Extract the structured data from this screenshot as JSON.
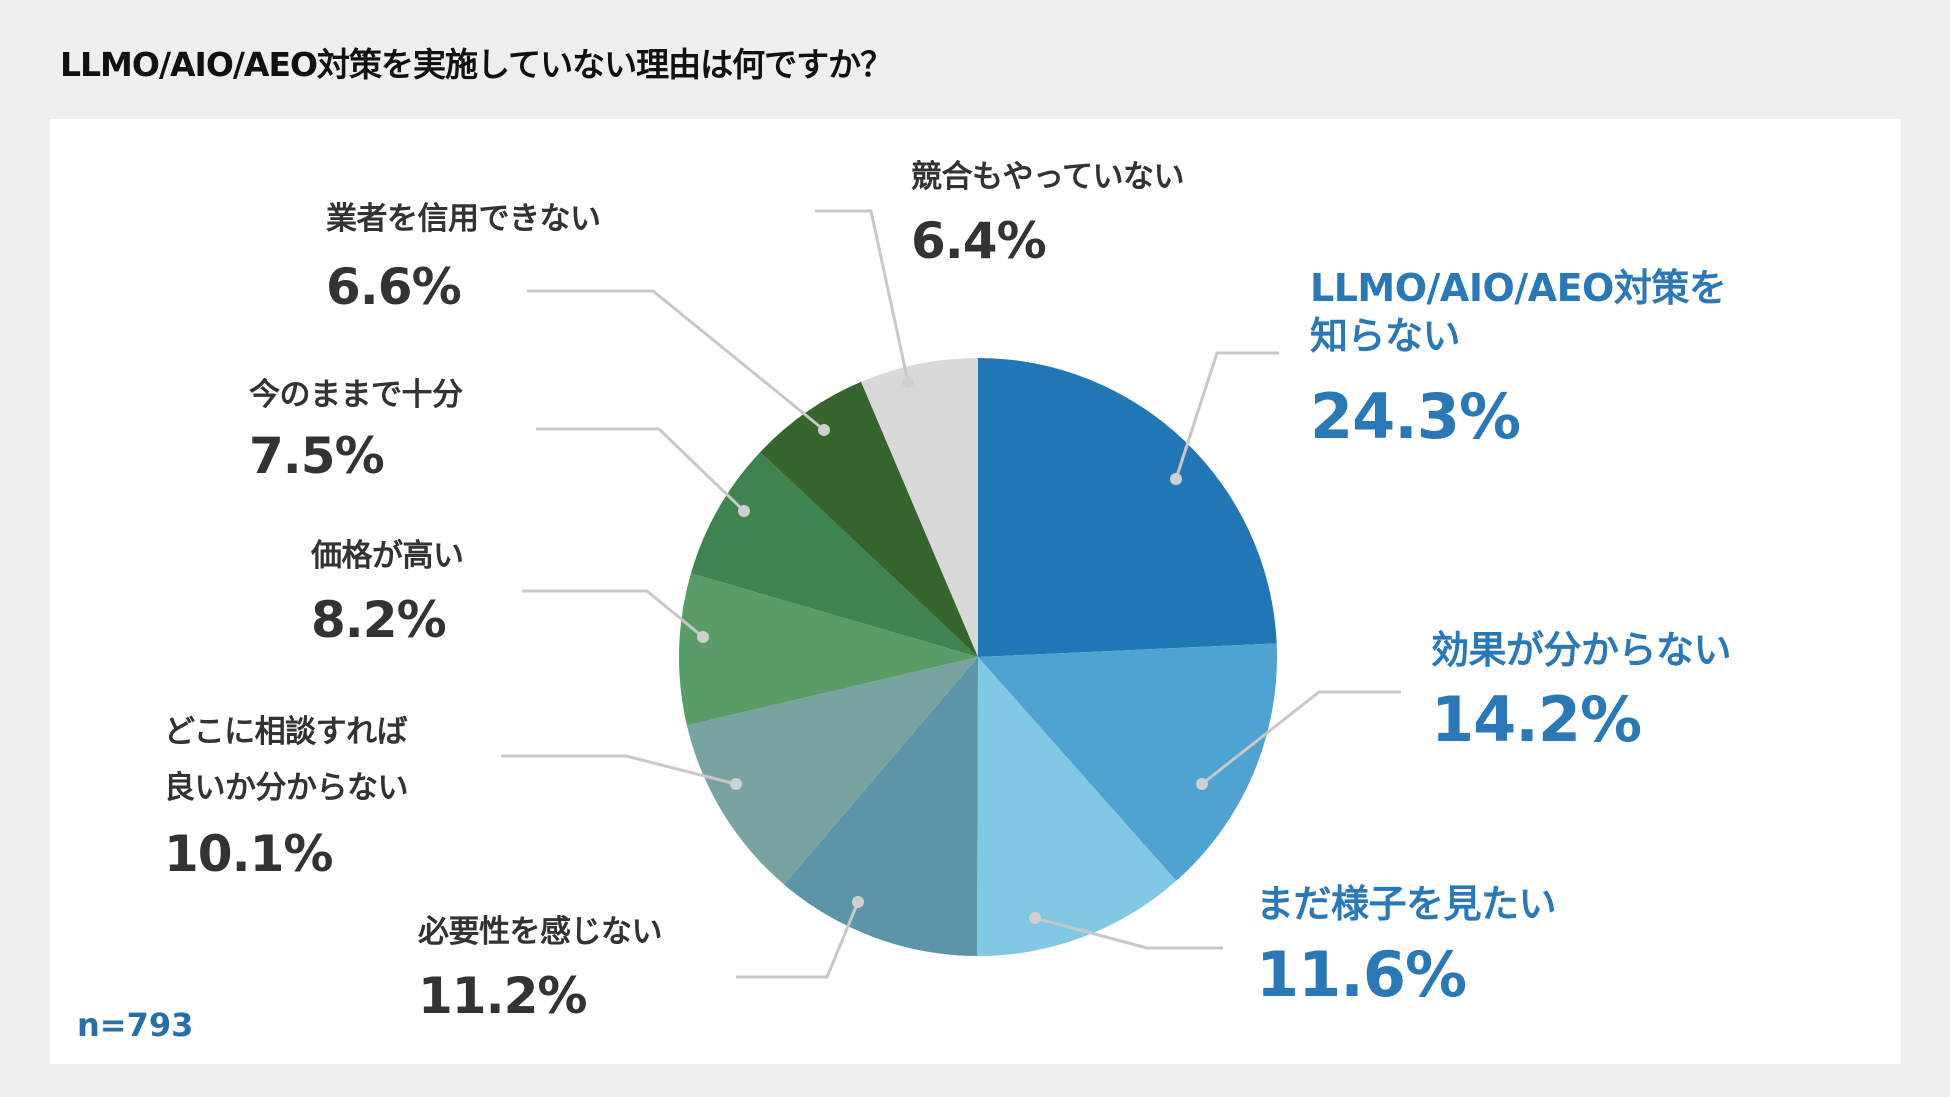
{
  "title": "LLMO/AIO/AEO対策を実施していない理由は何ですか？",
  "sample_size": "n=793",
  "chart_data": {
    "type": "pie",
    "title": "LLMO/AIO/AEO対策を実施していない理由は何ですか？",
    "start": "12 o'clock, clockwise",
    "categories": [
      "LLMO/AIO/AEO対策を知らない",
      "効果が分からない",
      "まだ様子を見たい",
      "必要性を感じない",
      "どこに相談すれば良いか分からない",
      "価格が高い",
      "今のままで十分",
      "業者を信用できない",
      "競合もやっていない"
    ],
    "label_lines": [
      [
        "LLMO/AIO/AEO対策を",
        "知らない"
      ],
      [
        "効果が分からない"
      ],
      [
        "まだ様子を見たい"
      ],
      [
        "必要性を感じない"
      ],
      [
        "どこに相談すれば",
        "良いか分からない"
      ],
      [
        "価格が高い"
      ],
      [
        "今のままで十分"
      ],
      [
        "業者を信用できない"
      ],
      [
        "競合もやっていない"
      ]
    ],
    "values": [
      24.3,
      14.2,
      11.6,
      11.2,
      10.1,
      8.2,
      7.5,
      6.6,
      6.4
    ],
    "value_labels": [
      "24.3%",
      "14.2%",
      "11.6%",
      "11.2%",
      "10.1%",
      "8.2%",
      "7.5%",
      "6.6%",
      "6.4%"
    ],
    "colors": [
      "#2176b5",
      "#4ea3d0",
      "#80c8e4",
      "#5d95a8",
      "#79a3a0",
      "#5a9c68",
      "#3e8350",
      "#35642c",
      "#d9d9d9"
    ],
    "highlight_text_color": "#2a78b5"
  }
}
